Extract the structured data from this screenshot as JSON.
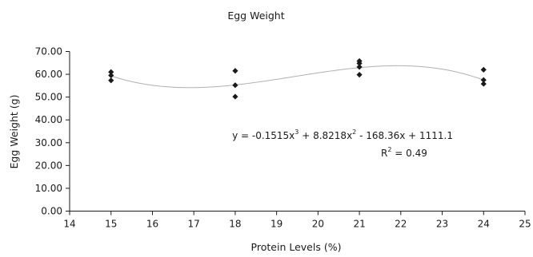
{
  "chart_data": {
    "type": "scatter",
    "title": "Egg Weight",
    "xlabel": "Protein Levels (%)",
    "ylabel": "Egg Weight (g)",
    "xlim": [
      14,
      25
    ],
    "ylim": [
      0,
      70
    ],
    "xticks": [
      "14",
      "15",
      "16",
      "17",
      "18",
      "19",
      "20",
      "21",
      "22",
      "23",
      "24",
      "25"
    ],
    "yticks": [
      "0.00",
      "10.00",
      "20.00",
      "30.00",
      "40.00",
      "50.00",
      "60.00",
      "70.00"
    ],
    "grid": false,
    "marker_color": "#1a1a1a",
    "trendline_color": "#b0b0b0",
    "points": [
      {
        "x": 15,
        "y": 61.0
      },
      {
        "x": 15,
        "y": 59.5
      },
      {
        "x": 15,
        "y": 57.3
      },
      {
        "x": 18,
        "y": 61.5
      },
      {
        "x": 18,
        "y": 55.2
      },
      {
        "x": 18,
        "y": 50.2
      },
      {
        "x": 21,
        "y": 65.8
      },
      {
        "x": 21,
        "y": 64.8
      },
      {
        "x": 21,
        "y": 63.2
      },
      {
        "x": 21,
        "y": 59.8
      },
      {
        "x": 24,
        "y": 62.0
      },
      {
        "x": 24,
        "y": 57.5
      },
      {
        "x": 24,
        "y": 55.8
      }
    ],
    "trendline": {
      "type": "polynomial",
      "coefficients": [
        -0.1515,
        8.8218,
        -168.36,
        1111.1
      ],
      "x_range": [
        15,
        24
      ]
    },
    "annotation": {
      "eq_text1": "y = -0.1515x",
      "eq_sup1": "3",
      "eq_text2": " + 8.8218x",
      "eq_sup2": "2",
      "eq_text3": " - 168.36x + 1111.1",
      "r2_text": "R",
      "r2_sup": "2",
      "r2_value": " = 0.49"
    }
  }
}
